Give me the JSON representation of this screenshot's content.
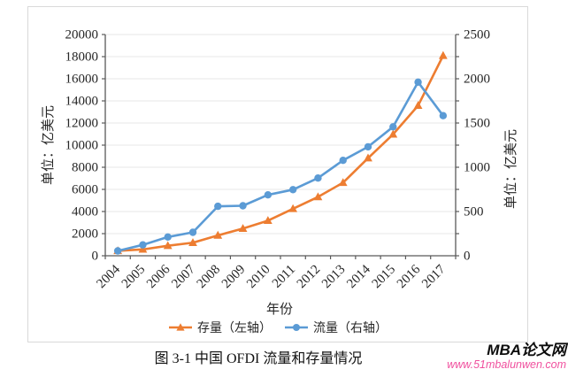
{
  "figure": {
    "caption": "图 3-1  中国 OFDI 流量和存量情况",
    "watermark": {
      "title": "MBA论文网",
      "url": "www.51mbalunwen.com",
      "url_color": "#f0509e"
    }
  },
  "chart_data": {
    "type": "line",
    "title": "",
    "xlabel": "年份",
    "grid": true,
    "legend_position": "bottom",
    "categories": [
      "2004",
      "2005",
      "2006",
      "2007",
      "2008",
      "2009",
      "2010",
      "2011",
      "2012",
      "2013",
      "2014",
      "2015",
      "2016",
      "2017"
    ],
    "series": [
      {
        "name": "存量（左轴）",
        "axis": "left",
        "color": "#ED7D31",
        "marker": "triangle",
        "values": [
          448,
          572,
          906,
          1179,
          1840,
          2458,
          3172,
          4248,
          5319,
          6605,
          8826,
          10979,
          13574,
          18090
        ]
      },
      {
        "name": "流量（右轴）",
        "axis": "right",
        "color": "#5B9BD5",
        "marker": "circle",
        "values": [
          55,
          123,
          212,
          265,
          559,
          565,
          688,
          747,
          878,
          1078,
          1231,
          1457,
          1962,
          1583
        ]
      }
    ],
    "left_axis": {
      "title": "单位：亿美元",
      "min": 0,
      "max": 20000,
      "step": 2000
    },
    "right_axis": {
      "title": "单位：亿美元",
      "min": 0,
      "max": 2500,
      "step": 500,
      "minor_step": 250
    },
    "colors": {
      "axis_line": "#595959",
      "gridline": "#e7e7e7",
      "tick_text": "#262626"
    }
  }
}
